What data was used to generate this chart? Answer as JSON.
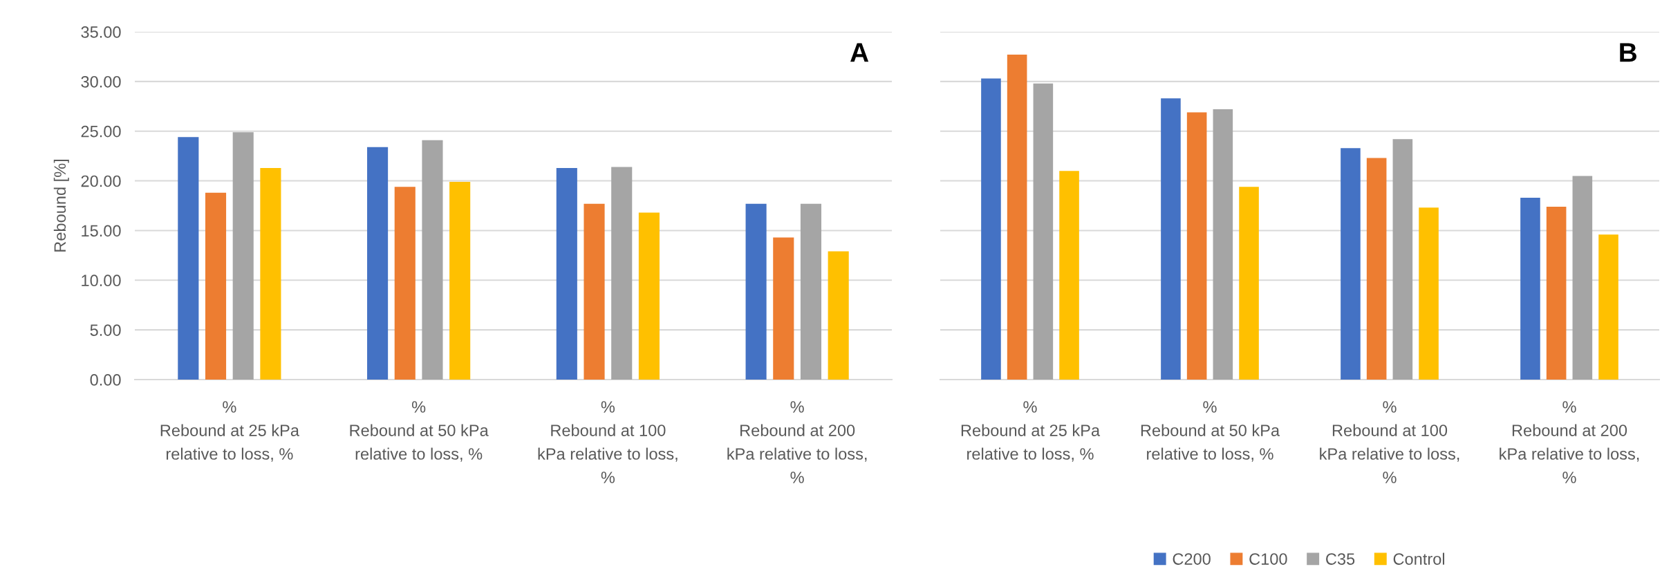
{
  "chart_data": [
    {
      "type": "bar",
      "ylabel": "Rebound [%]",
      "annotations": [
        "A"
      ],
      "categories": [
        "%\nRebound at 25 kPa\nrelative to loss, %",
        "%\nRebound at 50 kPa\nrelative to loss, %",
        "%\nRebound at 100\nkPa relative to loss,\n%",
        "%\nRebound at 200\nkPa relative to loss,\n%"
      ],
      "series": [
        {
          "name": "C200",
          "color": "#4472c4",
          "values": [
            24.4,
            23.4,
            21.3,
            17.7
          ]
        },
        {
          "name": "C100",
          "color": "#ed7d31",
          "values": [
            18.8,
            19.4,
            17.7,
            14.3
          ]
        },
        {
          "name": "C35",
          "color": "#a5a5a5",
          "values": [
            24.9,
            24.1,
            21.4,
            17.7
          ]
        },
        {
          "name": "Control",
          "color": "#ffc000",
          "values": [
            21.3,
            19.9,
            16.8,
            12.9
          ]
        }
      ],
      "ylim": [
        0,
        35
      ],
      "yticks": [
        {
          "value": 0,
          "label": "0.00"
        },
        {
          "value": 5,
          "label": "5.00"
        },
        {
          "value": 10,
          "label": "10.00"
        },
        {
          "value": 15,
          "label": "15.00"
        },
        {
          "value": 20,
          "label": "20.00"
        },
        {
          "value": 25,
          "label": "25.00"
        },
        {
          "value": 30,
          "label": "30.00"
        },
        {
          "value": 35,
          "label": "35.00"
        }
      ],
      "grid": "y",
      "legend": "bottom"
    },
    {
      "type": "bar",
      "annotations": [
        "B"
      ],
      "categories": [
        "%\nRebound at 25 kPa\nrelative to loss, %",
        "%\nRebound at 50 kPa\nrelative to loss, %",
        "%\nRebound at 100\nkPa relative to loss,\n%",
        "%\nRebound at 200\nkPa relative to loss,\n%"
      ],
      "series": [
        {
          "name": "C200",
          "color": "#4472c4",
          "values": [
            30.3,
            28.3,
            23.3,
            18.3
          ]
        },
        {
          "name": "C100",
          "color": "#ed7d31",
          "values": [
            32.7,
            26.9,
            22.3,
            17.4
          ]
        },
        {
          "name": "C35",
          "color": "#a5a5a5",
          "values": [
            29.8,
            27.2,
            24.2,
            20.5
          ]
        },
        {
          "name": "Control",
          "color": "#ffc000",
          "values": [
            21.0,
            19.4,
            17.3,
            14.6
          ]
        }
      ],
      "ylim": [
        0,
        35
      ],
      "yticks": [
        {
          "value": 0,
          "label": null
        },
        {
          "value": 5,
          "label": null
        },
        {
          "value": 10,
          "label": null
        },
        {
          "value": 15,
          "label": null
        },
        {
          "value": 20,
          "label": null
        },
        {
          "value": 25,
          "label": null
        },
        {
          "value": 30,
          "label": null
        },
        {
          "value": 35,
          "label": null
        }
      ],
      "grid": "y",
      "tick_labels": "x",
      "legend": "bottom"
    }
  ]
}
